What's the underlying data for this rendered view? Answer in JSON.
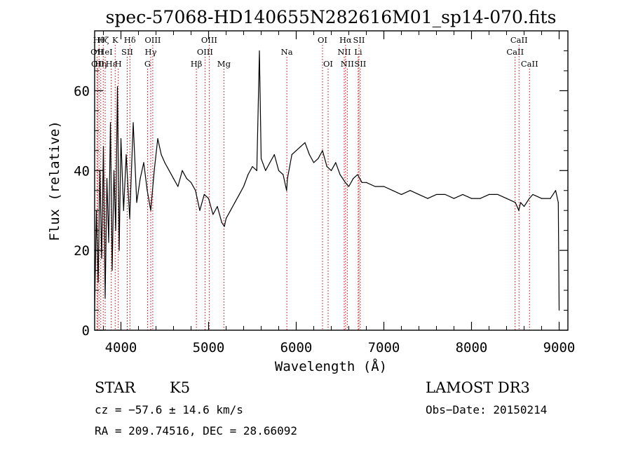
{
  "chart_data": {
    "type": "line",
    "title": "spec-57068-HD140655N282616M01_sp14-070.fits",
    "xlabel": "Wavelength (Å)",
    "ylabel": "Flux (relative)",
    "xlim": [
      3700,
      9100
    ],
    "ylim": [
      0,
      75
    ],
    "xticks": [
      4000,
      5000,
      6000,
      7000,
      8000,
      9000
    ],
    "xtick_labels": [
      "4000",
      "5000",
      "6000",
      "7000",
      "8000",
      "9000"
    ],
    "yticks": [
      0,
      20,
      40,
      60
    ],
    "ytick_labels": [
      "0",
      "20",
      "40",
      "60"
    ],
    "grid": false,
    "series": [
      {
        "name": "flux",
        "x": [
          3700,
          3720,
          3740,
          3760,
          3780,
          3800,
          3820,
          3840,
          3860,
          3880,
          3900,
          3920,
          3940,
          3960,
          3980,
          4000,
          4030,
          4060,
          4100,
          4140,
          4180,
          4220,
          4260,
          4300,
          4340,
          4380,
          4420,
          4460,
          4500,
          4550,
          4600,
          4650,
          4700,
          4750,
          4800,
          4850,
          4900,
          4950,
          5000,
          5050,
          5100,
          5150,
          5180,
          5200,
          5250,
          5300,
          5350,
          5400,
          5450,
          5500,
          5550,
          5580,
          5600,
          5650,
          5700,
          5750,
          5800,
          5850,
          5890,
          5900,
          5950,
          6000,
          6050,
          6100,
          6150,
          6200,
          6250,
          6300,
          6350,
          6400,
          6450,
          6500,
          6560,
          6600,
          6650,
          6700,
          6750,
          6800,
          6900,
          7000,
          7100,
          7200,
          7300,
          7400,
          7500,
          7600,
          7700,
          7800,
          7900,
          8000,
          8100,
          8200,
          8300,
          8400,
          8500,
          8540,
          8560,
          8600,
          8660,
          8700,
          8800,
          8900,
          8960,
          8990,
          9000
        ],
        "y": [
          5,
          30,
          12,
          40,
          18,
          46,
          8,
          38,
          22,
          52,
          15,
          40,
          25,
          61,
          20,
          48,
          30,
          44,
          28,
          52,
          32,
          38,
          42,
          35,
          30,
          40,
          48,
          44,
          42,
          40,
          38,
          36,
          40,
          38,
          37,
          35,
          30,
          34,
          33,
          29,
          31,
          27,
          26,
          28,
          30,
          32,
          34,
          36,
          39,
          41,
          40,
          70,
          43,
          40,
          42,
          44,
          40,
          39,
          35,
          38,
          44,
          45,
          46,
          47,
          44,
          42,
          43,
          45,
          41,
          40,
          42,
          39,
          37,
          36,
          38,
          39,
          37,
          37,
          36,
          36,
          35,
          34,
          35,
          34,
          33,
          34,
          34,
          33,
          34,
          33,
          33,
          34,
          34,
          33,
          32,
          30,
          32,
          31,
          33,
          34,
          33,
          33,
          35,
          32,
          5
        ],
        "line_color": "#000000"
      }
    ],
    "annotations": [
      {
        "wavelength": 3727,
        "label": "OII",
        "row": 2
      },
      {
        "wavelength": 3734,
        "label": "OII",
        "row": 3
      },
      {
        "wavelength": 3750,
        "label": "Hθ",
        "row": 1
      },
      {
        "wavelength": 3770,
        "label": "Hη",
        "row": 3
      },
      {
        "wavelength": 3798,
        "label": "Hζ",
        "row": 1
      },
      {
        "wavelength": 3820,
        "label": "HeI",
        "row": 2
      },
      {
        "wavelength": 3889,
        "label": "Hε",
        "row": 3
      },
      {
        "wavelength": 3934,
        "label": "K",
        "row": 1
      },
      {
        "wavelength": 3969,
        "label": "H",
        "row": 3
      },
      {
        "wavelength": 4072,
        "label": "SII",
        "row": 2
      },
      {
        "wavelength": 4102,
        "label": "Hδ",
        "row": 1
      },
      {
        "wavelength": 4304,
        "label": "G",
        "row": 3
      },
      {
        "wavelength": 4340,
        "label": "Hγ",
        "row": 2
      },
      {
        "wavelength": 4363,
        "label": "OIII",
        "row": 1
      },
      {
        "wavelength": 4861,
        "label": "Hβ",
        "row": 3
      },
      {
        "wavelength": 4959,
        "label": "OIII",
        "row": 2
      },
      {
        "wavelength": 5007,
        "label": "OIII",
        "row": 1
      },
      {
        "wavelength": 5175,
        "label": "Mg",
        "row": 3
      },
      {
        "wavelength": 5893,
        "label": "Na",
        "row": 2
      },
      {
        "wavelength": 6300,
        "label": "OI",
        "row": 1
      },
      {
        "wavelength": 6364,
        "label": "OI",
        "row": 3
      },
      {
        "wavelength": 6548,
        "label": "NII",
        "row": 2
      },
      {
        "wavelength": 6563,
        "label": "Hα",
        "row": 1
      },
      {
        "wavelength": 6583,
        "label": "NII",
        "row": 3
      },
      {
        "wavelength": 6707,
        "label": "Li",
        "row": 2
      },
      {
        "wavelength": 6716,
        "label": "SII",
        "row": 1
      },
      {
        "wavelength": 6731,
        "label": "SII",
        "row": 3
      },
      {
        "wavelength": 8498,
        "label": "CaII",
        "row": 2
      },
      {
        "wavelength": 8542,
        "label": "CaII",
        "row": 1
      },
      {
        "wavelength": 8662,
        "label": "CaII",
        "row": 3
      }
    ],
    "annotation_color": "#cc0000"
  },
  "info": {
    "object_class": "STAR",
    "subclass": "K5",
    "survey": "LAMOST DR3",
    "redshift": "cz = −57.6 ± 14.6 km/s",
    "obs_date": "Obs−Date: 20150214",
    "coords": "RA = 209.74516, DEC =  28.66092"
  }
}
